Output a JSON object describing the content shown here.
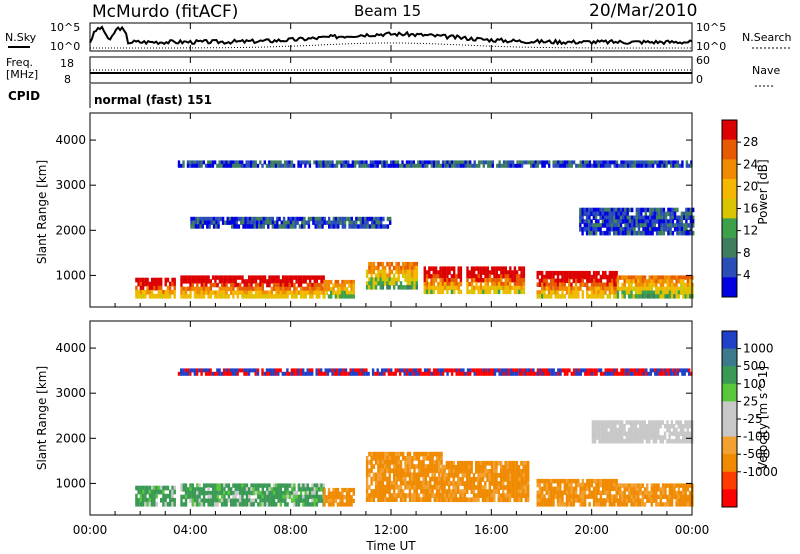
{
  "header": {
    "title": "McMurdo (fitACF)",
    "beam": "Beam 15",
    "date": "20/Mar/2010"
  },
  "noise_panel": {
    "left_label": "N.Sky",
    "right_label": "N.Search",
    "left_ticks": [
      "10^5",
      "10^0"
    ],
    "right_ticks": [
      "10^5",
      "10^0"
    ]
  },
  "freq_panel": {
    "left_label_1": "Freq.",
    "left_label_2": "[MHz]",
    "right_label": "Nave",
    "left_ticks": [
      "18",
      "8"
    ],
    "right_ticks": [
      "60",
      "0"
    ]
  },
  "cpid_panel": {
    "label": "CPID",
    "value": "normal (fast) 151"
  },
  "colors": {
    "power_scale": [
      "#0000e0",
      "#2a4db8",
      "#3e7e5e",
      "#3da04a",
      "#d9c400",
      "#f5b800",
      "#f08a00",
      "#e85a00",
      "#dd0000"
    ],
    "velocity_scale": [
      "#ff0000",
      "#ff3c00",
      "#f08a00",
      "#f2a030",
      "#c8c8c8",
      "#c8c8c8",
      "#58c83a",
      "#3a9a55",
      "#3a7a8a",
      "#2040c8"
    ]
  },
  "chart_data": [
    {
      "type": "heatmap",
      "panel": "power",
      "ylabel": "Slant Range [km]",
      "yticks": [
        "1000",
        "2000",
        "3000",
        "4000"
      ],
      "ylim": [
        300,
        4600
      ],
      "xlim_hours": [
        0,
        24
      ],
      "colorbar_label": "Power [dB]",
      "colorbar_ticks": [
        "4",
        "8",
        "12",
        "16",
        "20",
        "24",
        "28"
      ],
      "colorbar_range": [
        0,
        32
      ],
      "bands": [
        {
          "t0": 1.8,
          "t1": 3.4,
          "r0": 500,
          "r1": 950,
          "level": "high"
        },
        {
          "t0": 3.6,
          "t1": 9.3,
          "r0": 500,
          "r1": 1000,
          "level": "high"
        },
        {
          "t0": 9.3,
          "t1": 10.5,
          "r0": 500,
          "r1": 900,
          "level": "mid"
        },
        {
          "t0": 11.0,
          "t1": 13.0,
          "r0": 700,
          "r1": 1300,
          "level": "mid"
        },
        {
          "t0": 13.3,
          "t1": 14.8,
          "r0": 600,
          "r1": 1200,
          "level": "high"
        },
        {
          "t0": 15.0,
          "t1": 17.3,
          "r0": 600,
          "r1": 1200,
          "level": "high"
        },
        {
          "t0": 17.8,
          "t1": 21.0,
          "r0": 500,
          "r1": 1100,
          "level": "high"
        },
        {
          "t0": 21.0,
          "t1": 24.0,
          "r0": 500,
          "r1": 1000,
          "level": "mid"
        },
        {
          "t0": 3.5,
          "t1": 24.0,
          "r0": 3400,
          "r1": 3550,
          "level": "low"
        },
        {
          "t0": 4.0,
          "t1": 12.0,
          "r0": 2050,
          "r1": 2300,
          "level": "low"
        },
        {
          "t0": 19.5,
          "t1": 24.0,
          "r0": 1900,
          "r1": 2500,
          "level": "low"
        }
      ]
    },
    {
      "type": "heatmap",
      "panel": "velocity",
      "ylabel": "Slant Range [km]",
      "yticks": [
        "1000",
        "2000",
        "3000",
        "4000"
      ],
      "ylim": [
        300,
        4600
      ],
      "xlim_hours": [
        0,
        24
      ],
      "xticks": [
        "00:00",
        "04:00",
        "08:00",
        "12:00",
        "16:00",
        "20:00",
        "00:00"
      ],
      "xlabel": "Time UT",
      "colorbar_label": "Velocity [m s^-1]",
      "colorbar_ticks": [
        "-1000",
        "-500",
        "-100",
        "-25",
        "25",
        "100",
        "500",
        "1000"
      ],
      "bands": [
        {
          "t0": 1.8,
          "t1": 3.4,
          "r0": 500,
          "r1": 950,
          "level": "green"
        },
        {
          "t0": 3.6,
          "t1": 9.3,
          "r0": 500,
          "r1": 1000,
          "level": "green"
        },
        {
          "t0": 9.3,
          "t1": 10.5,
          "r0": 500,
          "r1": 900,
          "level": "orange"
        },
        {
          "t0": 11.0,
          "t1": 14.0,
          "r0": 600,
          "r1": 1700,
          "level": "orange"
        },
        {
          "t0": 14.0,
          "t1": 17.5,
          "r0": 600,
          "r1": 1500,
          "level": "orange"
        },
        {
          "t0": 17.8,
          "t1": 21.0,
          "r0": 500,
          "r1": 1100,
          "level": "orange"
        },
        {
          "t0": 21.0,
          "t1": 24.0,
          "r0": 500,
          "r1": 1000,
          "level": "orange"
        },
        {
          "t0": 20.0,
          "t1": 24.0,
          "r0": 1900,
          "r1": 2400,
          "level": "gray"
        },
        {
          "t0": 3.5,
          "t1": 24.0,
          "r0": 3400,
          "r1": 3550,
          "level": "red"
        }
      ]
    }
  ]
}
